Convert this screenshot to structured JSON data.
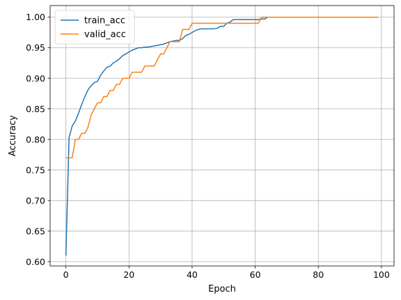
{
  "chart_data": {
    "type": "line",
    "title": "",
    "xlabel": "Epoch",
    "ylabel": "Accuracy",
    "xlim": [
      -5,
      104
    ],
    "ylim": [
      0.593,
      1.019
    ],
    "xticks": [
      0,
      20,
      40,
      60,
      80,
      100
    ],
    "xtick_labels": [
      "0",
      "20",
      "40",
      "60",
      "80",
      "100"
    ],
    "yticks": [
      0.6,
      0.65,
      0.7,
      0.75,
      0.8,
      0.85,
      0.9,
      0.95,
      1.0
    ],
    "ytick_labels": [
      "0.60",
      "0.65",
      "0.70",
      "0.75",
      "0.80",
      "0.85",
      "0.90",
      "0.95",
      "1.00"
    ],
    "grid": true,
    "legend_position": "top-left",
    "series": [
      {
        "name": "train_acc",
        "color": "#1f77b4",
        "x": [
          0,
          1,
          2,
          3,
          4,
          5,
          6,
          7,
          8,
          9,
          10,
          11,
          12,
          13,
          14,
          15,
          16,
          17,
          18,
          19,
          20,
          21,
          22,
          23,
          24,
          25,
          26,
          27,
          28,
          29,
          30,
          31,
          32,
          33,
          34,
          35,
          36,
          37,
          38,
          39,
          40,
          41,
          42,
          43,
          44,
          45,
          46,
          47,
          48,
          49,
          50,
          51,
          52,
          53,
          54,
          55,
          56,
          57,
          58,
          59,
          60,
          61,
          62,
          63,
          64,
          65,
          66,
          67,
          68,
          69,
          70,
          71,
          72,
          73,
          74,
          75,
          76,
          77,
          78,
          79,
          80,
          81,
          82,
          83,
          84,
          85,
          86,
          87,
          88,
          89,
          90,
          91,
          92,
          93,
          94,
          95,
          96,
          97,
          98,
          99
        ],
        "values": [
          0.61,
          0.803,
          0.822,
          0.83,
          0.843,
          0.857,
          0.87,
          0.881,
          0.888,
          0.893,
          0.895,
          0.905,
          0.912,
          0.918,
          0.92,
          0.925,
          0.928,
          0.932,
          0.937,
          0.94,
          0.943,
          0.946,
          0.948,
          0.95,
          0.95,
          0.951,
          0.951,
          0.952,
          0.953,
          0.954,
          0.955,
          0.956,
          0.958,
          0.96,
          0.961,
          0.962,
          0.962,
          0.965,
          0.97,
          0.972,
          0.975,
          0.978,
          0.98,
          0.981,
          0.981,
          0.981,
          0.981,
          0.981,
          0.982,
          0.985,
          0.985,
          0.99,
          0.992,
          0.996,
          0.996,
          0.996,
          0.996,
          0.996,
          0.996,
          0.996,
          0.996,
          0.996,
          0.997,
          0.997,
          1.0,
          1.0,
          1.0,
          1.0,
          1.0,
          1.0,
          1.0,
          1.0,
          1.0,
          1.0,
          1.0,
          1.0,
          1.0,
          1.0,
          1.0,
          1.0,
          1.0,
          1.0,
          1.0,
          1.0,
          1.0,
          1.0,
          1.0,
          1.0,
          1.0,
          1.0,
          1.0,
          1.0,
          1.0,
          1.0,
          1.0,
          1.0,
          1.0,
          1.0,
          1.0,
          1.0
        ]
      },
      {
        "name": "valid_acc",
        "color": "#ff7f0e",
        "x": [
          0,
          1,
          2,
          3,
          4,
          5,
          6,
          7,
          8,
          9,
          10,
          11,
          12,
          13,
          14,
          15,
          16,
          17,
          18,
          19,
          20,
          21,
          22,
          23,
          24,
          25,
          26,
          27,
          28,
          29,
          30,
          31,
          32,
          33,
          34,
          35,
          36,
          37,
          38,
          39,
          40,
          41,
          42,
          43,
          44,
          45,
          46,
          47,
          48,
          49,
          50,
          51,
          52,
          53,
          54,
          55,
          56,
          57,
          58,
          59,
          60,
          61,
          62,
          63,
          64,
          65,
          66,
          67,
          68,
          69,
          70,
          71,
          72,
          73,
          74,
          75,
          76,
          77,
          78,
          79,
          80,
          81,
          82,
          83,
          84,
          85,
          86,
          87,
          88,
          89,
          90,
          91,
          92,
          93,
          94,
          95,
          96,
          97,
          98,
          99
        ],
        "values": [
          0.77,
          0.77,
          0.77,
          0.8,
          0.8,
          0.81,
          0.81,
          0.82,
          0.84,
          0.85,
          0.86,
          0.86,
          0.87,
          0.87,
          0.88,
          0.88,
          0.89,
          0.89,
          0.9,
          0.9,
          0.9,
          0.91,
          0.91,
          0.91,
          0.91,
          0.92,
          0.92,
          0.92,
          0.92,
          0.93,
          0.94,
          0.94,
          0.95,
          0.96,
          0.96,
          0.96,
          0.96,
          0.98,
          0.98,
          0.98,
          0.99,
          0.99,
          0.99,
          0.99,
          0.99,
          0.99,
          0.99,
          0.99,
          0.99,
          0.99,
          0.99,
          0.99,
          0.99,
          0.99,
          0.99,
          0.99,
          0.99,
          0.99,
          0.99,
          0.99,
          0.99,
          0.99,
          1.0,
          1.0,
          1.0,
          1.0,
          1.0,
          1.0,
          1.0,
          1.0,
          1.0,
          1.0,
          1.0,
          1.0,
          1.0,
          1.0,
          1.0,
          1.0,
          1.0,
          1.0,
          1.0,
          1.0,
          1.0,
          1.0,
          1.0,
          1.0,
          1.0,
          1.0,
          1.0,
          1.0,
          1.0,
          1.0,
          1.0,
          1.0,
          1.0,
          1.0,
          1.0,
          1.0,
          1.0,
          1.0
        ]
      }
    ]
  }
}
